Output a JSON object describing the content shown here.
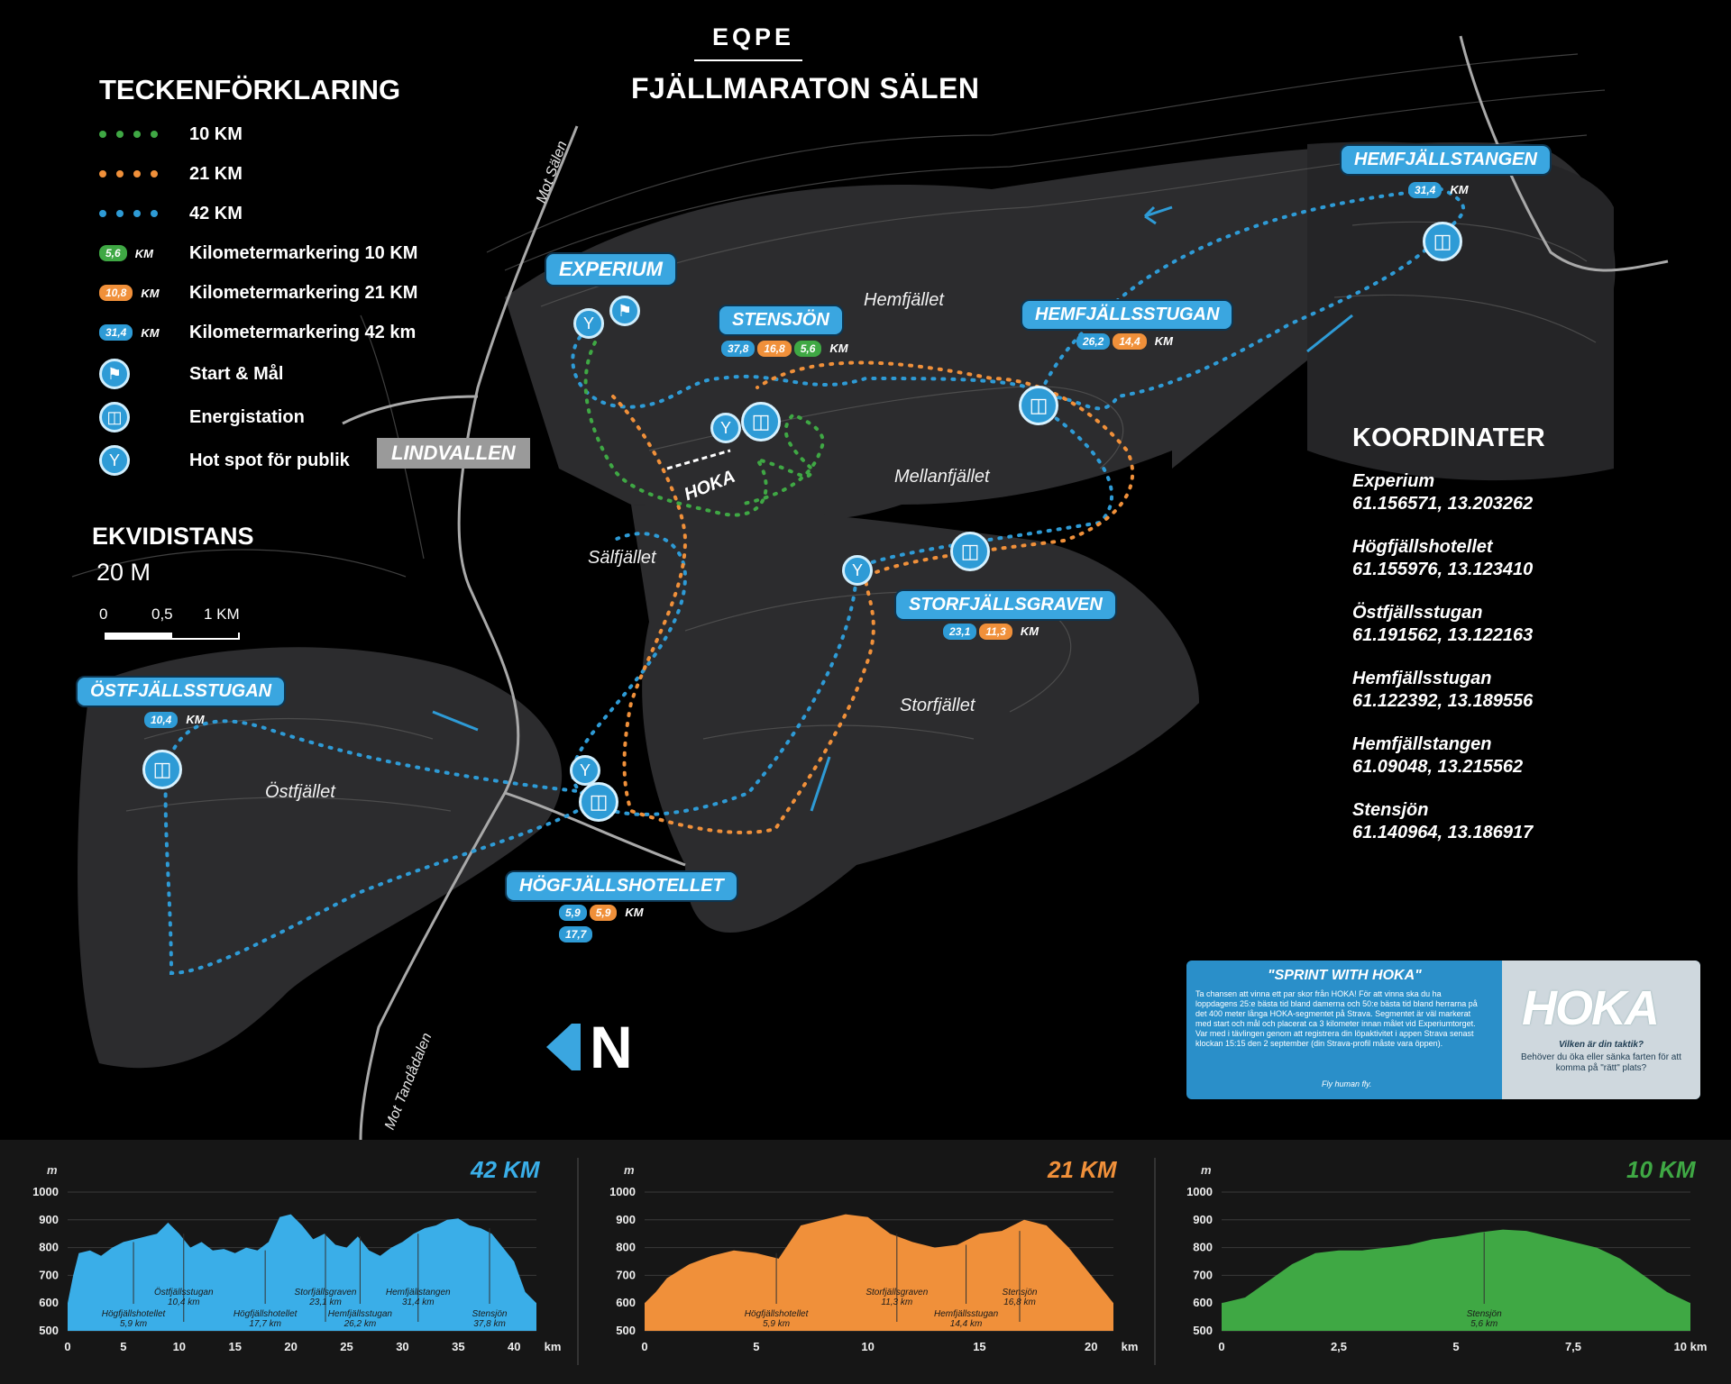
{
  "header": {
    "brand": "EQPE",
    "title": "FJÄLLMARATON SÄLEN"
  },
  "legend": {
    "title": "TECKENFÖRKLARING",
    "items": [
      {
        "label": "10 KM",
        "color": "#3fa844"
      },
      {
        "label": "21 KM",
        "color": "#f0903a"
      },
      {
        "label": "42 KM",
        "color": "#2e9bd6"
      },
      {
        "label": "Kilometermarkering 10 KM",
        "pill": "5,6",
        "unit": "KM"
      },
      {
        "label": "Kilometermarkering 21 KM",
        "pill": "10,8",
        "unit": "KM"
      },
      {
        "label": "Kilometermarkering 42 km",
        "pill": "31,4",
        "unit": "KM"
      },
      {
        "label": "Start & Mål",
        "icon": "start-finish-icon"
      },
      {
        "label": "Energistation",
        "icon": "cup-icon"
      },
      {
        "label": "Hot spot för publik",
        "icon": "spectator-icon"
      }
    ]
  },
  "equidistance": {
    "title": "EKVIDISTANS",
    "value": "20 M",
    "scale": [
      "0",
      "0,5",
      "1 KM"
    ]
  },
  "roads": {
    "north": "Mot Sälen",
    "south": "Mot Tandådalen"
  },
  "places": {
    "experium": "EXPERIUM",
    "stensjon": {
      "name": "STENSJÖN",
      "km": [
        "37,8",
        "16,8",
        "5,6"
      ],
      "unit": "KM"
    },
    "hemfjallstangen": {
      "name": "HEMFJÄLLSTANGEN",
      "km": [
        "31,4"
      ],
      "unit": "KM"
    },
    "hemfjallsstugan": {
      "name": "HEMFJÄLLSSTUGAN",
      "km": [
        "26,2",
        "14,4"
      ],
      "unit": "KM"
    },
    "storfjallsgraven": {
      "name": "STORFJÄLLSGRAVEN",
      "km": [
        "23,1",
        "11,3"
      ],
      "unit": "KM"
    },
    "ostfjallsstugan": {
      "name": "ÖSTFJÄLLSSTUGAN",
      "km": [
        "10,4"
      ],
      "unit": "KM"
    },
    "hogfjallshotellet": {
      "name": "HÖGFJÄLLSHOTELLET",
      "km": [
        "5,9",
        "5,9",
        "17,7"
      ],
      "unit": "KM"
    },
    "lindvallen": "LINDVALLEN",
    "hoka_mark": "HOKA"
  },
  "regions": [
    "Hemfjället",
    "Mellanfjället",
    "Sälfjället",
    "Storfjället",
    "Östfjället"
  ],
  "coordinates": {
    "title": "KOORDINATER",
    "items": [
      {
        "name": "Experium",
        "value": "61.156571, 13.203262"
      },
      {
        "name": "Högfjällshotellet",
        "value": "61.155976, 13.123410"
      },
      {
        "name": "Östfjällsstugan",
        "value": "61.191562, 13.122163"
      },
      {
        "name": "Hemfjällsstugan",
        "value": "61.122392, 13.189556"
      },
      {
        "name": "Hemfjällstangen",
        "value": "61.09048, 13.215562"
      },
      {
        "name": "Stensjön",
        "value": "61.140964, 13.186917"
      }
    ]
  },
  "promo": {
    "title": "\"SPRINT WITH HOKA\"",
    "body": "Ta chansen att vinna ett par skor från HOKA! För att vinna ska du ha loppdagens 25:e bästa tid bland damerna och 50:e bästa tid bland herrarna på det 400 meter långa HOKA-segmentet på Strava. Segmentet är väl markerat med start och mål och placerat ca 3 kilometer innan målet vid Experiumtorget. Var med i tävlingen genom att registrera din löpaktivitet i appen Strava senast klockan 15:15 den 2 september (din Strava-profil måste vara öppen).",
    "sign": "Fly human fly.",
    "logo": "HOKA",
    "question": "Vilken är din taktik?",
    "answer": "Behöver du öka eller sänka farten för att komma på \"rätt\" plats?"
  },
  "north_letter": "N",
  "chart_data": [
    {
      "type": "area",
      "title": "42 KM",
      "color": "#3aaee8",
      "ylabel": "m",
      "xlabel": "km",
      "ylim": [
        500,
        1000
      ],
      "xlim": [
        0,
        42
      ],
      "yticks": [
        "1000",
        "900",
        "800",
        "700",
        "600",
        "500"
      ],
      "xticks": [
        "0",
        "5",
        "10",
        "15",
        "20",
        "25",
        "30",
        "35",
        "40",
        "km"
      ],
      "x": [
        0,
        0.5,
        1,
        2,
        3,
        4,
        5,
        6,
        7,
        8,
        9,
        10,
        11,
        12,
        13,
        14,
        15,
        16,
        17,
        18,
        19,
        20,
        21,
        22,
        23,
        24,
        25,
        26,
        27,
        28,
        29,
        30,
        31,
        32,
        33,
        34,
        35,
        36,
        37,
        38,
        39,
        40,
        41,
        42
      ],
      "y": [
        600,
        700,
        780,
        790,
        770,
        800,
        820,
        830,
        840,
        850,
        890,
        850,
        800,
        820,
        790,
        795,
        780,
        800,
        790,
        820,
        910,
        920,
        880,
        830,
        850,
        810,
        800,
        840,
        790,
        770,
        800,
        820,
        850,
        870,
        880,
        900,
        905,
        880,
        870,
        850,
        800,
        750,
        640,
        600
      ],
      "annotations": [
        {
          "x": 5.9,
          "label": "Högfjällshotellet",
          "sub": "5,9 km"
        },
        {
          "x": 10.4,
          "label": "Östfjällsstugan",
          "sub": "10,4 km"
        },
        {
          "x": 17.7,
          "label": "Högfjällshotellet",
          "sub": "17,7 km"
        },
        {
          "x": 23.1,
          "label": "Storfjällsgraven",
          "sub": "23,1 km"
        },
        {
          "x": 26.2,
          "label": "Hemfjällsstugan",
          "sub": "26,2 km"
        },
        {
          "x": 31.4,
          "label": "Hemfjällstangen",
          "sub": "31,4 km"
        },
        {
          "x": 37.8,
          "label": "Stensjön",
          "sub": "37,8 km"
        }
      ]
    },
    {
      "type": "area",
      "title": "21 KM",
      "color": "#f0903a",
      "ylabel": "m",
      "xlabel": "km",
      "ylim": [
        500,
        1000
      ],
      "xlim": [
        0,
        21
      ],
      "yticks": [
        "1000",
        "900",
        "800",
        "700",
        "600",
        "500"
      ],
      "xticks": [
        "0",
        "5",
        "10",
        "15",
        "20",
        "km"
      ],
      "x": [
        0,
        0.5,
        1,
        2,
        3,
        4,
        5,
        6,
        7,
        8,
        9,
        10,
        11,
        12,
        13,
        14,
        15,
        16,
        17,
        18,
        19,
        20,
        21
      ],
      "y": [
        600,
        640,
        690,
        740,
        770,
        790,
        780,
        760,
        880,
        900,
        920,
        910,
        850,
        820,
        800,
        810,
        850,
        860,
        900,
        880,
        800,
        700,
        600
      ],
      "annotations": [
        {
          "x": 5.9,
          "label": "Högfjällshotellet",
          "sub": "5,9 km"
        },
        {
          "x": 11.3,
          "label": "Storfjällsgraven",
          "sub": "11,3 km"
        },
        {
          "x": 14.4,
          "label": "Hemfjällsstugan",
          "sub": "14,4 km"
        },
        {
          "x": 16.8,
          "label": "Stensjön",
          "sub": "16,8 km"
        }
      ]
    },
    {
      "type": "area",
      "title": "10 KM",
      "color": "#3fa844",
      "ylabel": "m",
      "xlabel": "km",
      "ylim": [
        500,
        1000
      ],
      "xlim": [
        0,
        10
      ],
      "yticks": [
        "1000",
        "900",
        "800",
        "700",
        "600",
        "500"
      ],
      "xticks": [
        "0",
        "2,5",
        "5",
        "7,5",
        "10 km"
      ],
      "x": [
        0,
        0.5,
        1,
        1.5,
        2,
        2.5,
        3,
        3.5,
        4,
        4.5,
        5,
        5.5,
        6,
        6.5,
        7,
        7.5,
        8,
        8.5,
        9,
        9.5,
        10
      ],
      "y": [
        600,
        620,
        680,
        740,
        780,
        790,
        790,
        800,
        810,
        830,
        840,
        855,
        865,
        860,
        840,
        820,
        800,
        760,
        700,
        640,
        600
      ],
      "annotations": [
        {
          "x": 5.6,
          "label": "Stensjön",
          "sub": "5,6 km"
        }
      ]
    }
  ]
}
